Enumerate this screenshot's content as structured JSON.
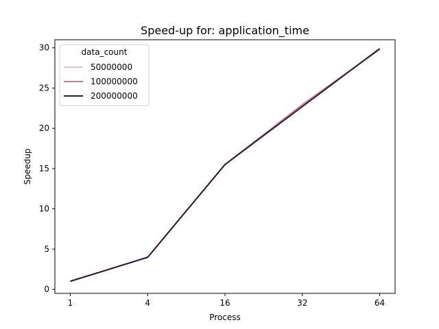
{
  "chart_data": {
    "type": "line",
    "title": "Speed-up for: application_time",
    "xlabel": "Process",
    "ylabel": "Speedup",
    "categories": [
      "1",
      "4",
      "16",
      "32",
      "64"
    ],
    "ylim": [
      -0.5,
      31
    ],
    "yticks": [
      0,
      5,
      10,
      15,
      20,
      25,
      30
    ],
    "grid": false,
    "legend": {
      "title": "data_count",
      "placement": "top-left"
    },
    "series": [
      {
        "name": "50000000",
        "color": "#f1c2c6",
        "values": [
          1.0,
          3.98,
          15.5,
          23.0,
          29.8
        ]
      },
      {
        "name": "100000000",
        "color": "#c07c96",
        "values": [
          1.0,
          3.98,
          15.5,
          22.9,
          29.8
        ]
      },
      {
        "name": "200000000",
        "color": "#2c1a33",
        "values": [
          1.0,
          3.98,
          15.5,
          22.7,
          29.9
        ]
      }
    ]
  }
}
